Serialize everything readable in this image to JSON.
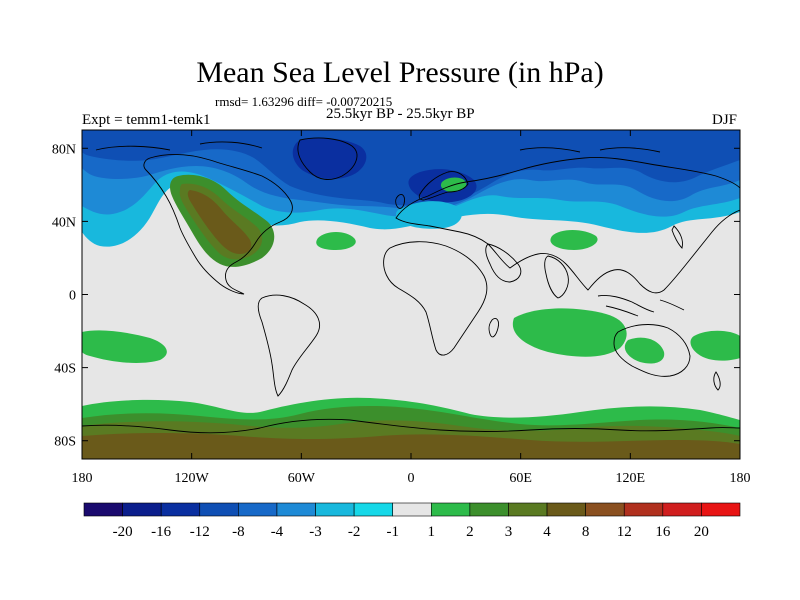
{
  "title": "Mean Sea Level Pressure (in hPa)",
  "stats_line": "rmsd= 1.63296 diff= -0.00720215",
  "subtitle": "25.5kyr BP - 25.5kyr BP",
  "experiment": "Expt = temm1-temk1",
  "season": "DJF",
  "map": {
    "lon_ticks": [
      "180",
      "120W",
      "60W",
      "0",
      "60E",
      "120E",
      "180"
    ],
    "lat_ticks": [
      "80N",
      "40N",
      "0",
      "40S",
      "80S"
    ],
    "lat_tick_values": [
      80,
      40,
      0,
      -40,
      -80
    ],
    "lon_tick_values": [
      -180,
      -120,
      -60,
      0,
      60,
      120,
      180
    ],
    "lat_range": [
      -90,
      90
    ],
    "lon_range": [
      -180,
      180
    ]
  },
  "colorbar": {
    "labels": [
      "-20",
      "-16",
      "-12",
      "-8",
      "-4",
      "-3",
      "-2",
      "-1",
      "1",
      "2",
      "3",
      "4",
      "8",
      "12",
      "16",
      "20"
    ],
    "colors": [
      "#1a0a6e",
      "#0b1e8c",
      "#0a2fa0",
      "#0f4fb4",
      "#1769c8",
      "#1e8ad6",
      "#18b8dd",
      "#16d8e8",
      "#e6e6e6",
      "#2dbb4a",
      "#3c8f2c",
      "#5a7a22",
      "#6a5a1a",
      "#8a5020",
      "#b0301e",
      "#d01e1e",
      "#e81414"
    ]
  },
  "colors": {
    "neutral": "#e6e6e6",
    "coast": "#000000"
  }
}
